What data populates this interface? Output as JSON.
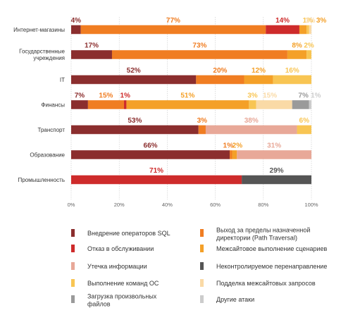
{
  "chart_data": {
    "type": "bar",
    "orientation": "horizontal",
    "stacked": true,
    "title": "",
    "xlabel": "",
    "ylabel": "",
    "xlim": [
      0,
      100
    ],
    "grid": true,
    "legend_position": "bottom",
    "x_ticks": [
      "0%",
      "20%",
      "40%",
      "60%",
      "80%",
      "100%"
    ],
    "categories": [
      "Интернет-магазины",
      "Государственные учреждения",
      "IT",
      "Финансы",
      "Транспорт",
      "Образование",
      "Промышленность"
    ],
    "series": [
      {
        "name": "Внедрение операторов SQL",
        "color": "#8B2E2E",
        "values": [
          4,
          17,
          52,
          7,
          53,
          66,
          0
        ]
      },
      {
        "name": "Выход за пределы назначенной директории (Path Traversal)",
        "color": "#F07D22",
        "values": [
          77,
          73,
          20,
          15,
          3,
          1,
          0
        ]
      },
      {
        "name": "Отказ в обслуживании",
        "color": "#CE2B2B",
        "values": [
          14,
          0,
          0,
          1,
          0,
          0,
          71
        ]
      },
      {
        "name": "Межсайтовое выполнение сценариев",
        "color": "#F4A028",
        "values": [
          3,
          8,
          12,
          51,
          0,
          2,
          0
        ]
      },
      {
        "name": "Утечка информации",
        "color": "#E8A898",
        "values": [
          0,
          0,
          0,
          0,
          38,
          31,
          0
        ]
      },
      {
        "name": "Неконтролируемое перенаправление",
        "color": "#555555",
        "values": [
          0,
          0,
          0,
          0,
          0,
          0,
          29
        ]
      },
      {
        "name": "Выполнение команд ОС",
        "color": "#F8C553",
        "values": [
          1,
          2,
          16,
          3,
          6,
          0,
          0
        ]
      },
      {
        "name": "Подделка межсайтовых запросов",
        "color": "#FADAA6",
        "values": [
          1,
          0,
          0,
          15,
          0,
          0,
          0
        ]
      },
      {
        "name": "Загрузка произвольных файлов",
        "color": "#9A9A9A",
        "values": [
          0,
          0,
          0,
          7,
          0,
          0,
          0
        ]
      },
      {
        "name": "Другие атаки",
        "color": "#CCCCCC",
        "values": [
          0,
          0,
          0,
          1,
          0,
          0,
          0
        ]
      }
    ],
    "stack_order": [
      [
        "Внедрение операторов SQL",
        "Выход за пределы назначенной директории (Path Traversal)",
        "Отказ в обслуживании",
        "Межсайтовое выполнение сценариев",
        "Выполнение команд ОС",
        "Подделка межсайтовых запросов"
      ],
      [
        "Внедрение операторов SQL",
        "Выход за пределы назначенной директории (Path Traversal)",
        "Межсайтовое выполнение сценариев",
        "Выполнение команд ОС"
      ],
      [
        "Внедрение операторов SQL",
        "Выход за пределы назначенной директории (Path Traversal)",
        "Межсайтовое выполнение сценариев",
        "Выполнение команд ОС"
      ],
      [
        "Внедрение операторов SQL",
        "Выход за пределы назначенной директории (Path Traversal)",
        "Отказ в обслуживании",
        "Межсайтовое выполнение сценариев",
        "Выполнение команд ОС",
        "Подделка межсайтовых запросов",
        "Загрузка произвольных файлов",
        "Другие атаки"
      ],
      [
        "Внедрение операторов SQL",
        "Выход за пределы назначенной директории (Path Traversal)",
        "Утечка информации",
        "Выполнение команд ОС"
      ],
      [
        "Внедрение операторов SQL",
        "Выход за пределы назначенной директории (Path Traversal)",
        "Межсайтовое выполнение сценариев",
        "Утечка информации"
      ],
      [
        "Отказ в обслуживании",
        "Неконтролируемое перенаправление"
      ]
    ],
    "legend_order": [
      "Внедрение операторов SQL",
      "Отказ в обслуживании",
      "Утечка информации",
      "Выполнение команд ОС",
      "Загрузка произвольных файлов",
      "Выход за пределы назначенной директории (Path Traversal)",
      "Межсайтовое выполнение сценариев",
      "Неконтролируемое перенаправление",
      "Подделка межсайтовых запросов",
      "Другие атаки"
    ]
  }
}
